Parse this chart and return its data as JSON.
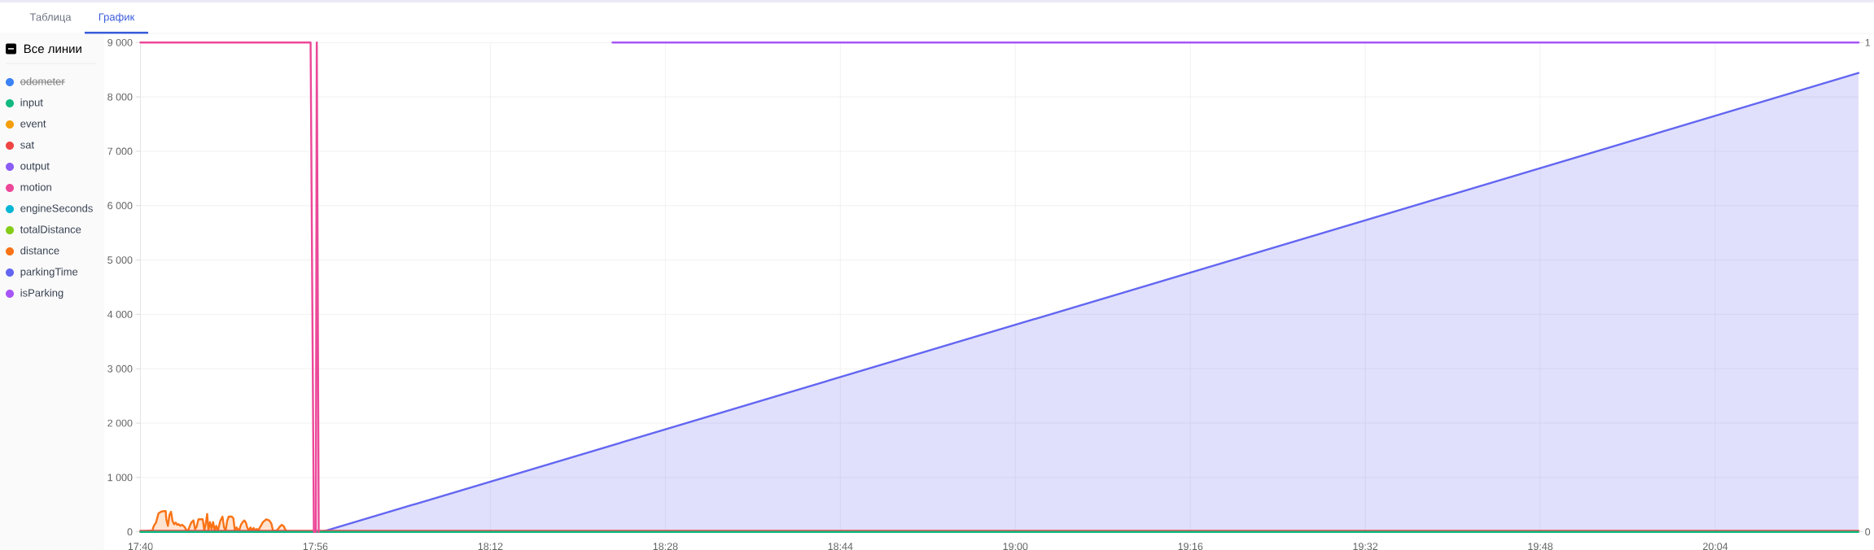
{
  "chart_data": {
    "type": "line",
    "annotations": [
      "Таблица",
      "График"
    ],
    "legend_title": "Все линии",
    "legend": "left",
    "grid": true,
    "line_style": "solid",
    "xlim": [
      17.6667,
      20.285
    ],
    "xticks": [
      {
        "value": 17.6667,
        "label": "17:40"
      },
      {
        "value": 17.9333,
        "label": "17:56"
      },
      {
        "value": 18.2,
        "label": "18:12"
      },
      {
        "value": 18.4667,
        "label": "18:28"
      },
      {
        "value": 18.7333,
        "label": "18:44"
      },
      {
        "value": 19,
        "label": "19:00"
      },
      {
        "value": 19.2667,
        "label": "19:16"
      },
      {
        "value": 19.5333,
        "label": "19:32"
      },
      {
        "value": 19.8,
        "label": "19:48"
      },
      {
        "value": 20.0667,
        "label": "20:04"
      }
    ],
    "ylim": [
      0,
      9000
    ],
    "yticks": [
      0,
      {
        "value": 1000,
        "label": "1 000"
      },
      {
        "value": 2000,
        "label": "2 000"
      },
      {
        "value": 3000,
        "label": "3 000"
      },
      {
        "value": 4000,
        "label": "4 000"
      },
      {
        "value": 5000,
        "label": "5 000"
      },
      {
        "value": 6000,
        "label": "6 000"
      },
      {
        "value": 7000,
        "label": "7 000"
      },
      {
        "value": 8000,
        "label": "8 000"
      },
      {
        "value": 9000,
        "label": "9 000"
      }
    ],
    "y2lim": [
      0,
      1
    ],
    "y2ticks": [
      0,
      1
    ],
    "series": [
      {
        "name": "odometer",
        "color": "#3b82f6"
      },
      {
        "name": "input",
        "color": "#10b981",
        "x": [
          17.6667,
          20.285
        ],
        "values": [
          0,
          0
        ]
      },
      {
        "name": "event",
        "color": "#f59e0b",
        "values": [
          null
        ]
      },
      {
        "name": "sat",
        "color": "#ef4444",
        "x": [
          17.6667,
          20.285
        ],
        "values": [
          20,
          20
        ]
      },
      {
        "name": "output",
        "color": "#8b5cf6",
        "values": [
          null
        ]
      },
      {
        "name": "motion",
        "color": "#ec4899",
        "axis": "y2",
        "x": [
          17.6667,
          17.926,
          17.931,
          17.934,
          17.9355,
          17.9384
        ],
        "values": [
          1,
          1,
          0,
          0,
          1,
          0
        ]
      },
      {
        "name": "engineSeconds",
        "color": "#06b6d4",
        "values": [
          null
        ]
      },
      {
        "name": "totalDistance",
        "color": "#84cc16",
        "values": [
          null
        ]
      },
      {
        "name": "distance",
        "type": "area",
        "color": "#f97316",
        "x": [
          17.6667,
          17.68,
          17.6847,
          17.6871,
          17.6904,
          17.6942,
          17.698,
          17.7014,
          17.7052,
          17.7061,
          17.7085,
          17.7109,
          17.7133,
          17.7156,
          17.718,
          17.7204,
          17.7228,
          17.7251,
          17.7275,
          17.7299,
          17.7323,
          17.7346,
          17.737,
          17.7394,
          17.7441,
          17.7475,
          17.7499,
          17.7522,
          17.7551,
          17.7584,
          17.7617,
          17.7641,
          17.7665,
          17.7684,
          17.7703,
          17.7727,
          17.7751,
          17.7774,
          17.7798,
          17.7822,
          17.7846,
          17.7884,
          17.7917,
          17.7941,
          17.7965,
          17.7988,
          17.8012,
          17.806,
          17.8083,
          17.8107,
          17.8131,
          17.8169,
          17.8202,
          17.8226,
          17.825,
          17.8274,
          17.8297,
          17.8321,
          17.8345,
          17.8369,
          17.8392,
          17.8416,
          17.844,
          17.8464,
          17.8502,
          17.8535,
          17.8583,
          17.863,
          17.8663,
          17.8687,
          17.8725,
          17.8749,
          17.8787,
          17.882,
          17.8853,
          17.8882,
          17.8915,
          17.8986
        ],
        "values": [
          0,
          20,
          20,
          110,
          170,
          340,
          370,
          380,
          380,
          230,
          110,
          310,
          370,
          200,
          140,
          170,
          130,
          140,
          110,
          130,
          110,
          80,
          20,
          30,
          170,
          210,
          50,
          90,
          230,
          230,
          230,
          20,
          170,
          330,
          20,
          180,
          50,
          180,
          30,
          110,
          20,
          200,
          280,
          80,
          20,
          200,
          280,
          280,
          250,
          20,
          80,
          20,
          140,
          180,
          210,
          170,
          70,
          30,
          80,
          30,
          70,
          30,
          50,
          30,
          110,
          180,
          230,
          210,
          150,
          20,
          20,
          30,
          90,
          130,
          100,
          20,
          0,
          0
        ]
      },
      {
        "name": "parkingTime",
        "type": "area",
        "color": "#6366f1",
        "x": [
          17.9437,
          20.285
        ],
        "values": [
          0,
          8440
        ]
      },
      {
        "name": "isParking",
        "color": "#a855f7",
        "axis": "y2",
        "x": [
          18.3862,
          20.285
        ],
        "values": [
          1,
          1
        ]
      }
    ]
  }
}
